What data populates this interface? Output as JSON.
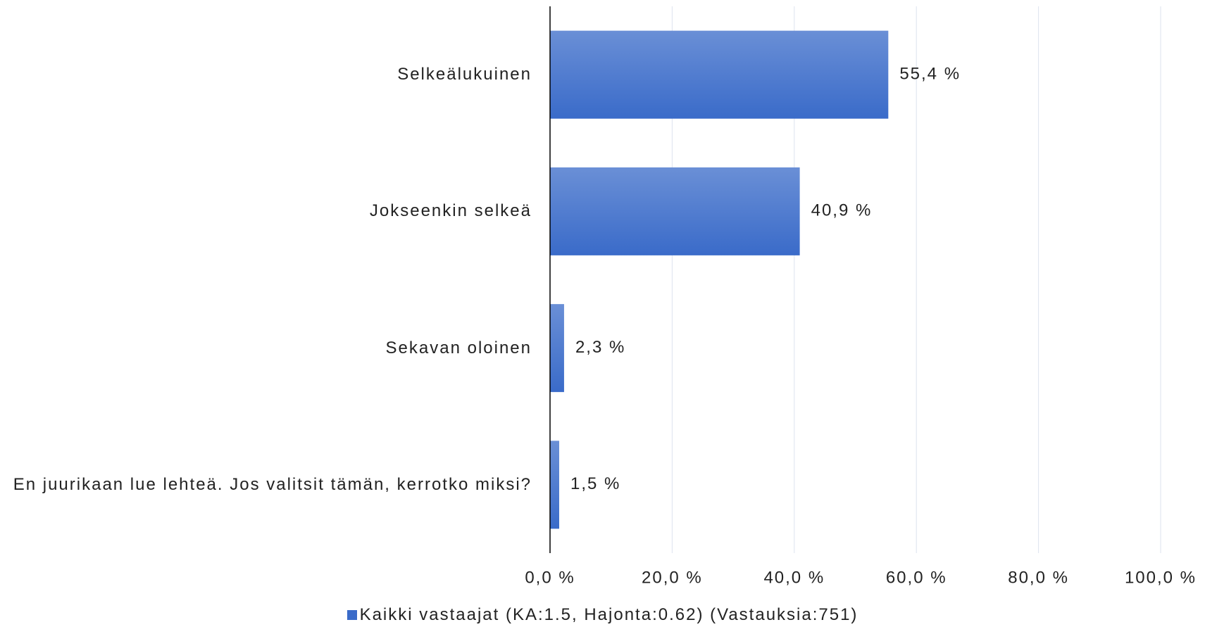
{
  "chart_data": {
    "type": "bar",
    "orientation": "horizontal",
    "categories": [
      "Selkeälukuinen",
      "Jokseenkin selkeä",
      "Sekavan oloinen",
      "En juurikaan lue lehteä. Jos valitsit tämän, kerrotko miksi?"
    ],
    "series": [
      {
        "name": "Kaikki vastaajat (KA:1.5, Hajonta:0.62) (Vastauksia:751)",
        "color": "#3a6bc9",
        "values": [
          55.4,
          40.9,
          2.3,
          1.5
        ],
        "value_labels": [
          "55,4 %",
          "40,9 %",
          "2,3 %",
          "1,5 %"
        ]
      }
    ],
    "xlim": [
      0,
      100
    ],
    "xticks": [
      {
        "value": 0,
        "label": "0,0 %"
      },
      {
        "value": 20,
        "label": "20,0 %"
      },
      {
        "value": 40,
        "label": "40,0 %"
      },
      {
        "value": 60,
        "label": "60,0 %"
      },
      {
        "value": 80,
        "label": "80,0 %"
      },
      {
        "value": 100,
        "label": "100,0 %"
      }
    ],
    "grid": true,
    "legend": "bottom"
  }
}
